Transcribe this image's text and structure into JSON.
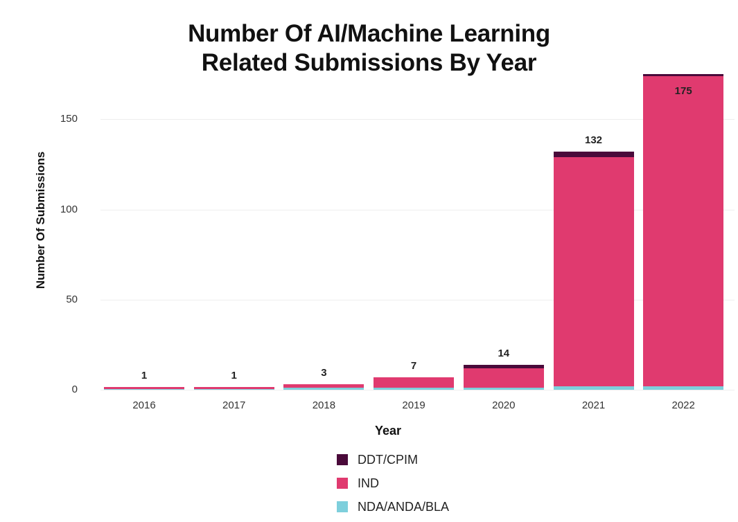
{
  "chart_data": {
    "type": "bar",
    "stacked": true,
    "title": "Number Of AI/Machine Learning Related Submissions By Year",
    "title_lines": [
      "Number Of AI/Machine Learning",
      "Related Submissions By Year"
    ],
    "xlabel": "Year",
    "ylabel": "Number Of Submissions",
    "ylim": [
      0,
      180
    ],
    "yticks": [
      0,
      50,
      100,
      150
    ],
    "grid": true,
    "legend_position": "bottom",
    "categories": [
      "2016",
      "2017",
      "2018",
      "2019",
      "2020",
      "2021",
      "2022"
    ],
    "totals": [
      1,
      1,
      3,
      7,
      14,
      132,
      175
    ],
    "series": [
      {
        "name": "NDA/ANDA/BLA",
        "color": "#7ecfdc",
        "values": [
          0,
          0,
          1,
          1,
          1,
          2,
          2
        ]
      },
      {
        "name": "IND",
        "color": "#e03a6f",
        "values": [
          1,
          1,
          2,
          6,
          11,
          127,
          172
        ]
      },
      {
        "name": "DDT/CPIM",
        "color": "#4a0a3a",
        "values": [
          0,
          0,
          0,
          0,
          2,
          3,
          1
        ]
      }
    ],
    "legend": [
      "DDT/CPIM",
      "IND",
      "NDA/ANDA/BLA"
    ]
  }
}
